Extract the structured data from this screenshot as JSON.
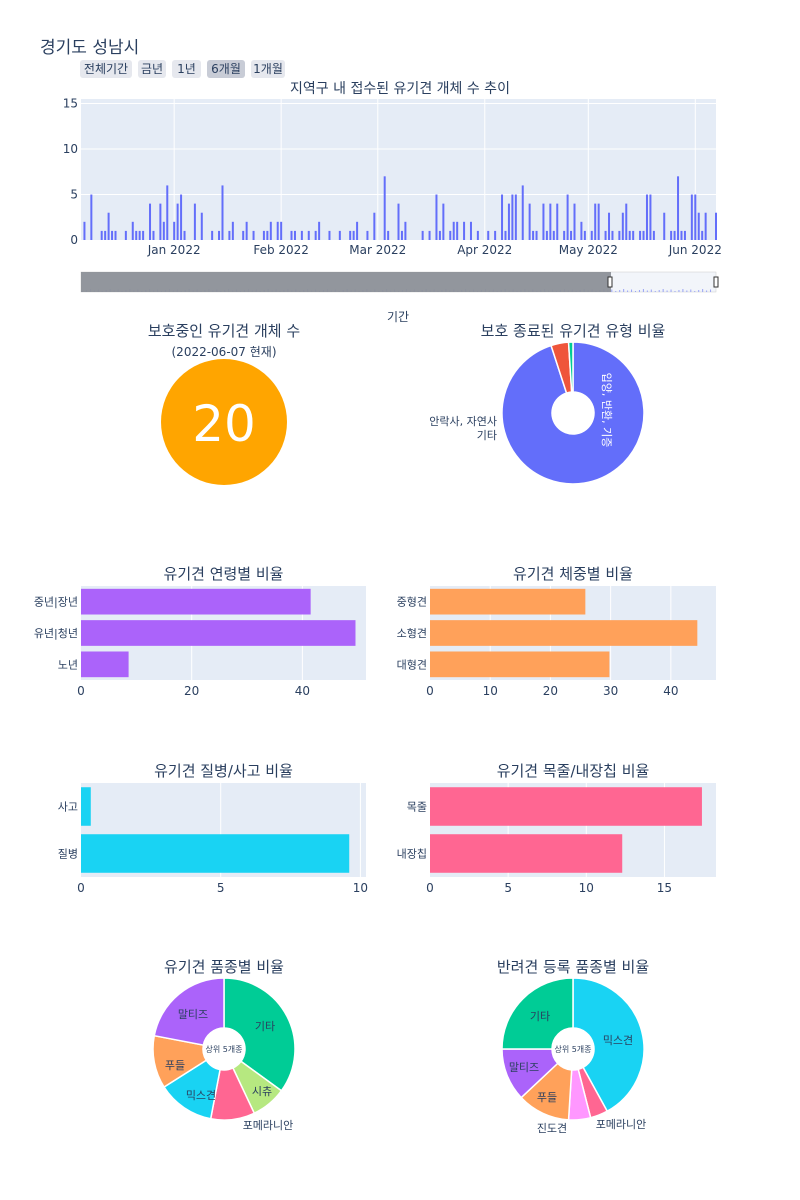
{
  "page_title": "경기도 성남시",
  "range_buttons": [
    "전체기간",
    "금년",
    "1년",
    "6개월",
    "1개월"
  ],
  "active_button": "6개월",
  "colors": {
    "plot_bg": "#e5ecf6",
    "grid": "#ffffff",
    "text": "#2a3f5f",
    "timeseries_bar": "#636efa",
    "gauge": "#ffa500",
    "age": "#ab63fa",
    "weight": "#ffa15a",
    "illness": "#19d3f3",
    "collar": "#ff6692"
  },
  "chart_data": [
    {
      "type": "bar",
      "title": "지역구 내 접수된 유기견 개체 수 추이",
      "xlabel": "기간",
      "ylabel": "",
      "x_range": [
        "2021-12-05",
        "2022-06-07"
      ],
      "x_ticks": [
        "Jan 2022",
        "Feb 2022",
        "Mar 2022",
        "Apr 2022",
        "May 2022",
        "Jun 2022"
      ],
      "ylim": [
        0,
        15.5
      ],
      "yticks": [
        0,
        5,
        10,
        15
      ],
      "rangeslider": true,
      "x": [
        "2021-12-06",
        "2021-12-08",
        "2021-12-11",
        "2021-12-12",
        "2021-12-13",
        "2021-12-14",
        "2021-12-15",
        "2021-12-18",
        "2021-12-20",
        "2021-12-21",
        "2021-12-22",
        "2021-12-23",
        "2021-12-25",
        "2021-12-26",
        "2021-12-28",
        "2021-12-29",
        "2021-12-30",
        "2022-01-01",
        "2022-01-02",
        "2022-01-03",
        "2022-01-04",
        "2022-01-07",
        "2022-01-09",
        "2022-01-12",
        "2022-01-14",
        "2022-01-15",
        "2022-01-17",
        "2022-01-18",
        "2022-01-21",
        "2022-01-22",
        "2022-01-24",
        "2022-01-27",
        "2022-01-28",
        "2022-01-29",
        "2022-01-31",
        "2022-02-01",
        "2022-02-04",
        "2022-02-05",
        "2022-02-07",
        "2022-02-09",
        "2022-02-11",
        "2022-02-12",
        "2022-02-15",
        "2022-02-18",
        "2022-02-21",
        "2022-02-22",
        "2022-02-23",
        "2022-02-26",
        "2022-02-28",
        "2022-03-03",
        "2022-03-04",
        "2022-03-07",
        "2022-03-08",
        "2022-03-09",
        "2022-03-14",
        "2022-03-16",
        "2022-03-18",
        "2022-03-19",
        "2022-03-20",
        "2022-03-22",
        "2022-03-23",
        "2022-03-24",
        "2022-03-26",
        "2022-03-28",
        "2022-03-30",
        "2022-04-02",
        "2022-04-04",
        "2022-04-06",
        "2022-04-07",
        "2022-04-08",
        "2022-04-09",
        "2022-04-10",
        "2022-04-12",
        "2022-04-14",
        "2022-04-15",
        "2022-04-16",
        "2022-04-18",
        "2022-04-19",
        "2022-04-20",
        "2022-04-21",
        "2022-04-22",
        "2022-04-24",
        "2022-04-25",
        "2022-04-26",
        "2022-04-27",
        "2022-04-29",
        "2022-04-30",
        "2022-05-02",
        "2022-05-03",
        "2022-05-04",
        "2022-05-06",
        "2022-05-07",
        "2022-05-08",
        "2022-05-10",
        "2022-05-11",
        "2022-05-12",
        "2022-05-13",
        "2022-05-14",
        "2022-05-16",
        "2022-05-17",
        "2022-05-18",
        "2022-05-19",
        "2022-05-20",
        "2022-05-23",
        "2022-05-25",
        "2022-05-26",
        "2022-05-27",
        "2022-05-28",
        "2022-05-29",
        "2022-05-31",
        "2022-06-01",
        "2022-06-02",
        "2022-06-03",
        "2022-06-04",
        "2022-06-07"
      ],
      "values": [
        2,
        5,
        1,
        1,
        3,
        1,
        1,
        1,
        2,
        1,
        1,
        1,
        4,
        1,
        4,
        2,
        6,
        2,
        4,
        5,
        1,
        4,
        3,
        1,
        1,
        6,
        1,
        2,
        1,
        2,
        1,
        1,
        1,
        2,
        2,
        2,
        1,
        1,
        1,
        1,
        1,
        2,
        1,
        1,
        1,
        1,
        2,
        1,
        3,
        7,
        1,
        4,
        1,
        2,
        1,
        1,
        5,
        1,
        4,
        1,
        2,
        2,
        2,
        2,
        1,
        1,
        1,
        5,
        1,
        4,
        5,
        5,
        6,
        4,
        1,
        1,
        4,
        1,
        4,
        1,
        4,
        1,
        5,
        1,
        4,
        2,
        1,
        1,
        4,
        4,
        1,
        3,
        1,
        1,
        3,
        4,
        1,
        1,
        1,
        1,
        5,
        5,
        1,
        3,
        1,
        1,
        7,
        1,
        1,
        5,
        5,
        3,
        1,
        3,
        3
      ]
    },
    {
      "type": "indicator",
      "title": "보호중인 유기견 개체 수",
      "subtitle": "(2022-06-07 현재)",
      "value": 20
    },
    {
      "type": "pie",
      "title": "보호 종료된 유기견 유형 비율",
      "hole": 0.3,
      "slices": [
        {
          "label": "입양, 반환, 기증",
          "value": 95,
          "color": "#636efa"
        },
        {
          "label": "안락사, 자연사",
          "value": 4,
          "color": "#ef553b"
        },
        {
          "label": "기타",
          "value": 1,
          "color": "#00cc96"
        }
      ]
    },
    {
      "type": "bar",
      "orientation": "h",
      "title": "유기견 연령별 비율",
      "categories": [
        "중년|장년",
        "유년|청년",
        "노년"
      ],
      "values": [
        41.5,
        49.6,
        8.6
      ],
      "xlim": [
        0,
        51.5
      ],
      "xticks": [
        0,
        20,
        40
      ]
    },
    {
      "type": "bar",
      "orientation": "h",
      "title": "유기견 체중별 비율",
      "categories": [
        "중형견",
        "소형견",
        "대형견"
      ],
      "values": [
        25.8,
        44.4,
        29.8
      ],
      "xlim": [
        0,
        47.5
      ],
      "xticks": [
        0,
        10,
        20,
        30,
        40
      ]
    },
    {
      "type": "bar",
      "orientation": "h",
      "title": "유기견 질병/사고 비율",
      "categories": [
        "사고",
        "질병"
      ],
      "values": [
        0.35,
        9.6
      ],
      "xlim": [
        0,
        10.2
      ],
      "xticks": [
        0,
        5,
        10
      ]
    },
    {
      "type": "bar",
      "orientation": "h",
      "title": "유기견 목줄/내장칩 비율",
      "categories": [
        "목줄",
        "내장칩"
      ],
      "values": [
        17.4,
        12.3
      ],
      "xlim": [
        0,
        18.3
      ],
      "xticks": [
        0,
        5,
        10,
        15
      ]
    },
    {
      "type": "pie",
      "title": "유기견 품종별 비율",
      "center_label": "상위 5개종",
      "hole": 0.3,
      "slices": [
        {
          "label": "기타",
          "value": 35,
          "color": "#00cc96"
        },
        {
          "label": "시츄",
          "value": 8,
          "color": "#b6e880"
        },
        {
          "label": "포메라니안",
          "value": 10,
          "color": "#ff6692"
        },
        {
          "label": "믹스견",
          "value": 13,
          "color": "#19d3f3"
        },
        {
          "label": "푸들",
          "value": 12,
          "color": "#ffa15a"
        },
        {
          "label": "말티즈",
          "value": 22,
          "color": "#ab63fa"
        }
      ]
    },
    {
      "type": "pie",
      "title": "반려견 등록 품종별 비율",
      "center_label": "상위 5개종",
      "hole": 0.3,
      "slices": [
        {
          "label": "믹스견",
          "value": 42,
          "color": "#19d3f3"
        },
        {
          "label": "포메라니안",
          "value": 4,
          "color": "#ff6692"
        },
        {
          "label": "진도견",
          "value": 5,
          "color": "#ff97ff"
        },
        {
          "label": "푸들",
          "value": 12,
          "color": "#ffa15a"
        },
        {
          "label": "말티즈",
          "value": 12,
          "color": "#ab63fa"
        },
        {
          "label": "기타",
          "value": 25,
          "color": "#00cc96"
        }
      ]
    }
  ]
}
